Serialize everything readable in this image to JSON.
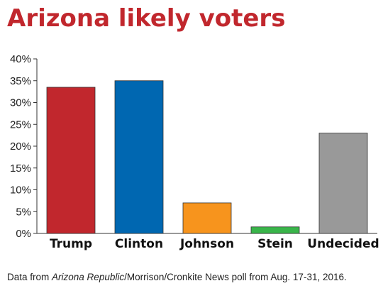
{
  "chart_data": {
    "type": "bar",
    "title": "Arizona likely voters",
    "categories": [
      "Trump",
      "Clinton",
      "Johnson",
      "Stein",
      "Undecided"
    ],
    "values": [
      33.5,
      35,
      7,
      1.5,
      23
    ],
    "colors": [
      "#c1272d",
      "#0067b1",
      "#f7941d",
      "#39b54a",
      "#999999"
    ],
    "ylim": [
      0,
      40
    ],
    "yticks": [
      0,
      5,
      10,
      15,
      20,
      25,
      30,
      35,
      40
    ],
    "ytick_suffix": "%",
    "grid": false,
    "xlabel": "",
    "ylabel": ""
  },
  "footnote": {
    "prefix": "Data from ",
    "italic": "Arizona Republic",
    "suffix": "/Morrison/Cronkite News poll from Aug. 17-31, 2016."
  }
}
